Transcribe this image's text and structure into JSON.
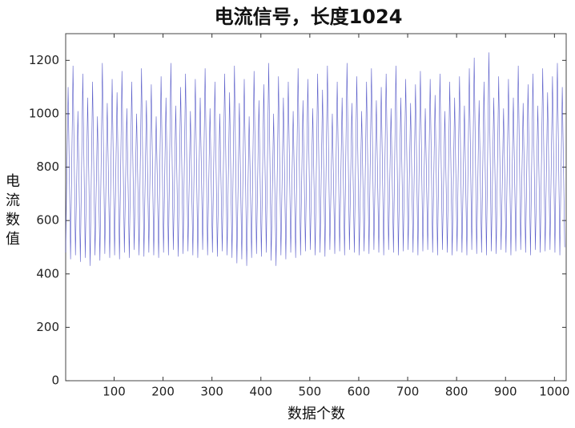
{
  "chart_data": {
    "type": "line",
    "title": "电流信号，长度1024",
    "xlabel": "数据个数",
    "ylabel": "电流数值",
    "color": "#3c40c0",
    "xlim": [
      1,
      1024
    ],
    "ylim": [
      0,
      1300
    ],
    "xticks": [
      100,
      200,
      300,
      400,
      500,
      600,
      700,
      800,
      900,
      1000
    ],
    "yticks": [
      0,
      200,
      400,
      600,
      800,
      1000,
      1200
    ],
    "grid": false,
    "x": [
      1,
      6,
      11,
      16,
      21,
      26,
      31,
      36,
      41,
      46,
      51,
      56,
      61,
      66,
      71,
      76,
      81,
      86,
      91,
      96,
      101,
      106,
      111,
      116,
      121,
      126,
      131,
      136,
      141,
      146,
      151,
      156,
      161,
      166,
      171,
      176,
      181,
      186,
      191,
      196,
      201,
      206,
      211,
      216,
      221,
      226,
      231,
      236,
      241,
      246,
      251,
      256,
      261,
      266,
      271,
      276,
      281,
      286,
      291,
      296,
      301,
      306,
      311,
      316,
      321,
      326,
      331,
      336,
      341,
      346,
      351,
      356,
      361,
      366,
      371,
      376,
      381,
      386,
      391,
      396,
      401,
      406,
      411,
      416,
      421,
      426,
      431,
      436,
      441,
      446,
      451,
      456,
      461,
      466,
      471,
      476,
      481,
      486,
      491,
      496,
      501,
      506,
      511,
      516,
      521,
      526,
      531,
      536,
      541,
      546,
      551,
      556,
      561,
      566,
      571,
      576,
      581,
      586,
      591,
      596,
      601,
      606,
      611,
      616,
      621,
      626,
      631,
      636,
      641,
      646,
      651,
      656,
      661,
      666,
      671,
      676,
      681,
      686,
      691,
      696,
      701,
      706,
      711,
      716,
      721,
      726,
      731,
      736,
      741,
      746,
      751,
      756,
      761,
      766,
      771,
      776,
      781,
      786,
      791,
      796,
      801,
      806,
      811,
      816,
      821,
      826,
      831,
      836,
      841,
      846,
      851,
      856,
      861,
      866,
      871,
      876,
      881,
      886,
      891,
      896,
      901,
      906,
      911,
      916,
      921,
      926,
      931,
      936,
      941,
      946,
      951,
      956,
      961,
      966,
      971,
      976,
      981,
      986,
      991,
      996,
      1001,
      1006,
      1011,
      1016,
      1021
    ],
    "values": [
      480,
      1100,
      455,
      1180,
      470,
      1010,
      445,
      1150,
      460,
      1060,
      430,
      1120,
      470,
      990,
      450,
      1190,
      475,
      1040,
      460,
      1130,
      470,
      1080,
      455,
      1160,
      480,
      1020,
      460,
      1120,
      490,
      1000,
      470,
      1170,
      465,
      1050,
      480,
      1110,
      470,
      990,
      460,
      1140,
      480,
      1060,
      470,
      1190,
      490,
      1030,
      465,
      1100,
      475,
      1150,
      485,
      1010,
      470,
      1130,
      460,
      1060,
      490,
      1170,
      470,
      1020,
      480,
      1120,
      465,
      1000,
      485,
      1150,
      470,
      1080,
      460,
      1180,
      440,
      1040,
      455,
      1130,
      430,
      990,
      460,
      1160,
      475,
      1050,
      465,
      1110,
      480,
      1190,
      450,
      1000,
      430,
      1140,
      470,
      1060,
      455,
      1120,
      480,
      1010,
      460,
      1170,
      470,
      1050,
      485,
      1130,
      490,
      1020,
      470,
      1150,
      480,
      1090,
      465,
      1180,
      490,
      1000,
      475,
      1120,
      485,
      1060,
      470,
      1190,
      490,
      1040,
      480,
      1140,
      470,
      1010,
      485,
      1120,
      475,
      1170,
      490,
      1050,
      480,
      1100,
      470,
      1150,
      490,
      1020,
      480,
      1180,
      470,
      1060,
      485,
      1130,
      490,
      1040,
      480,
      1110,
      470,
      1160,
      485,
      1020,
      490,
      1130,
      480,
      1070,
      470,
      1150,
      490,
      1010,
      480,
      1120,
      470,
      1060,
      485,
      1140,
      480,
      1030,
      470,
      1170,
      490,
      1210,
      475,
      1050,
      480,
      1120,
      470,
      1230,
      485,
      1060,
      475,
      1140,
      490,
      1020,
      480,
      1130,
      470,
      1060,
      485,
      1180,
      490,
      1040,
      480,
      1110,
      470,
      1150,
      490,
      1030,
      480,
      1170,
      485,
      1080,
      490,
      1140,
      480,
      1190,
      470,
      1100,
      500
    ]
  }
}
